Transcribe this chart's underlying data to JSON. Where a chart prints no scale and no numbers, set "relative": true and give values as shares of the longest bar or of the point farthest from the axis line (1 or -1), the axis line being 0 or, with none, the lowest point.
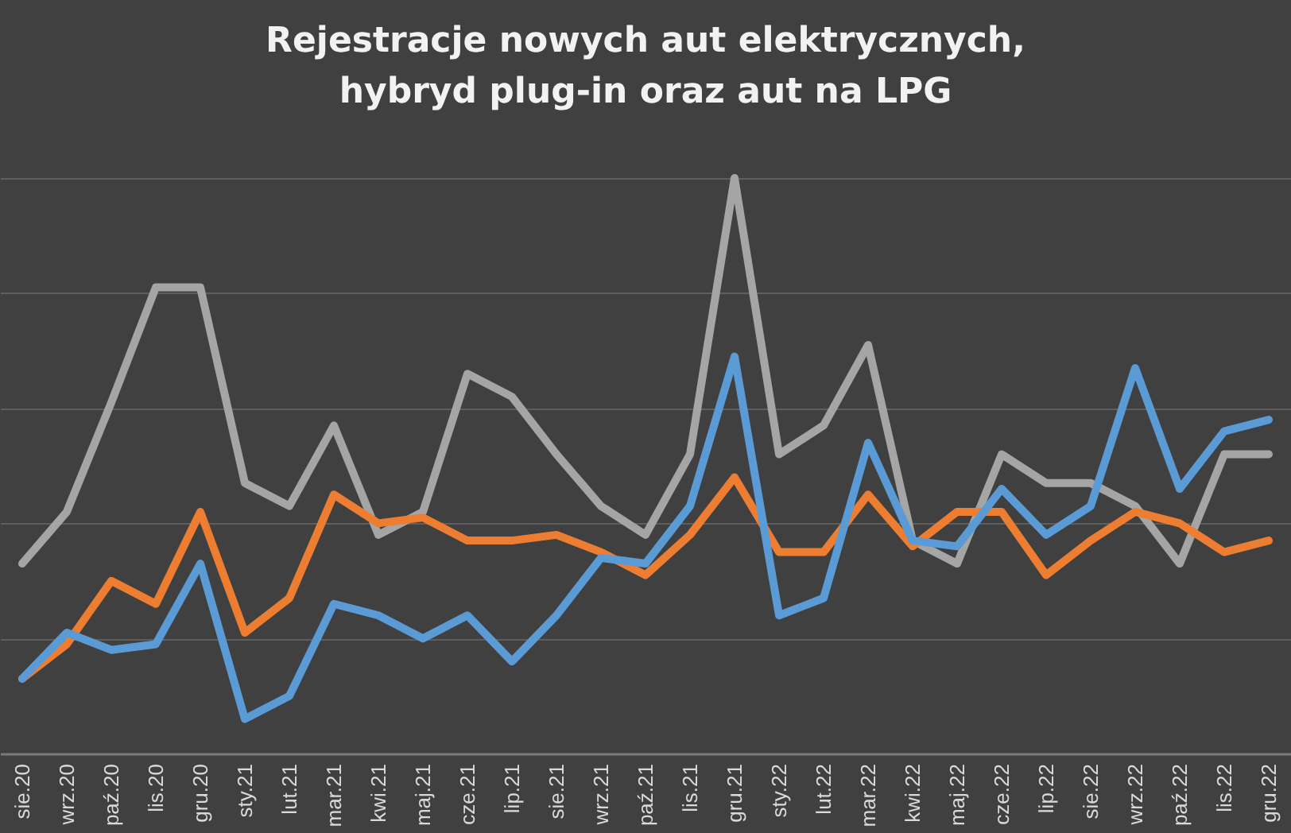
{
  "chart_data": {
    "type": "line",
    "title": "Rejestracje nowych aut elektrycznych, hybryd plug-in oraz aut na LPG",
    "relative": true,
    "grid": "y",
    "legend": false,
    "marker": "none",
    "line_style": "solid",
    "categories": [
      "sie.20",
      "wrz.20",
      "paź.20",
      "lis.20",
      "gru.20",
      "sty.21",
      "lut.21",
      "mar.21",
      "kwi.21",
      "maj.21",
      "cze.21",
      "lip.21",
      "sie.21",
      "wrz.21",
      "paź.21",
      "lis.21",
      "gru.21",
      "sty.22",
      "lut.22",
      "mar.22",
      "kwi.22",
      "maj.22",
      "cze.22",
      "lip.22",
      "sie.22",
      "wrz.22",
      "paź.22",
      "lis.22",
      "gru.22"
    ],
    "series": [
      {
        "color": "#a5a5a5",
        "values": [
          0.33,
          0.42,
          0.61,
          0.81,
          0.81,
          0.47,
          0.43,
          0.57,
          0.38,
          0.42,
          0.66,
          0.62,
          0.52,
          0.43,
          0.38,
          0.52,
          1.0,
          0.52,
          0.57,
          0.71,
          0.37,
          0.33,
          0.52,
          0.47,
          0.47,
          0.43,
          0.33,
          0.52,
          0.52
        ]
      },
      {
        "color": "#ed7d31",
        "values": [
          0.13,
          0.19,
          0.3,
          0.26,
          0.42,
          0.21,
          0.27,
          0.45,
          0.4,
          0.41,
          0.37,
          0.37,
          0.38,
          0.35,
          0.31,
          0.38,
          0.48,
          0.35,
          0.35,
          0.45,
          0.36,
          0.42,
          0.42,
          0.31,
          0.37,
          0.42,
          0.4,
          0.35,
          0.37
        ]
      },
      {
        "color": "#5b9bd5",
        "values": [
          0.13,
          0.21,
          0.18,
          0.19,
          0.33,
          0.06,
          0.1,
          0.26,
          0.24,
          0.2,
          0.24,
          0.16,
          0.24,
          0.34,
          0.33,
          0.43,
          0.69,
          0.24,
          0.27,
          0.54,
          0.37,
          0.36,
          0.46,
          0.38,
          0.43,
          0.67,
          0.46,
          0.56,
          0.58
        ]
      }
    ]
  }
}
